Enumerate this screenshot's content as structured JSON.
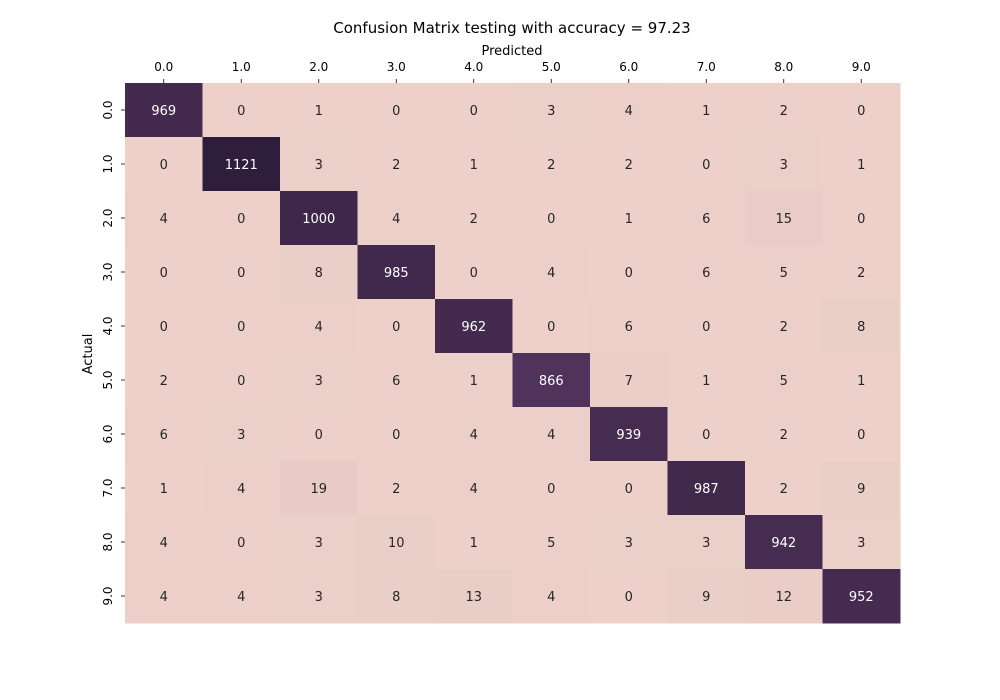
{
  "chart_data": {
    "type": "heatmap",
    "title": "Confusion Matrix testing with accuracy = 97.23",
    "xlabel": "Predicted",
    "ylabel": "Actual",
    "x_labels": [
      "0.0",
      "1.0",
      "2.0",
      "3.0",
      "4.0",
      "5.0",
      "6.0",
      "7.0",
      "8.0",
      "9.0"
    ],
    "y_labels": [
      "0.0",
      "1.0",
      "2.0",
      "3.0",
      "4.0",
      "5.0",
      "6.0",
      "7.0",
      "8.0",
      "9.0"
    ],
    "matrix": [
      [
        969,
        0,
        1,
        0,
        0,
        3,
        4,
        1,
        2,
        0
      ],
      [
        0,
        1121,
        3,
        2,
        1,
        2,
        2,
        0,
        3,
        1
      ],
      [
        4,
        0,
        1000,
        4,
        2,
        0,
        1,
        6,
        15,
        0
      ],
      [
        0,
        0,
        8,
        985,
        0,
        4,
        0,
        6,
        5,
        2
      ],
      [
        0,
        0,
        4,
        0,
        962,
        0,
        6,
        0,
        2,
        8
      ],
      [
        2,
        0,
        3,
        6,
        1,
        866,
        7,
        1,
        5,
        1
      ],
      [
        6,
        3,
        0,
        0,
        4,
        4,
        939,
        0,
        2,
        0
      ],
      [
        1,
        4,
        19,
        2,
        4,
        0,
        0,
        987,
        2,
        9
      ],
      [
        4,
        0,
        3,
        10,
        1,
        5,
        3,
        3,
        942,
        3
      ],
      [
        4,
        4,
        3,
        8,
        13,
        4,
        0,
        9,
        12,
        952
      ]
    ],
    "colorscale": {
      "low": "#ecd0c9",
      "high": "#2e1e3b"
    },
    "x_axis_position": "top",
    "colorbar": false,
    "grid": false
  }
}
